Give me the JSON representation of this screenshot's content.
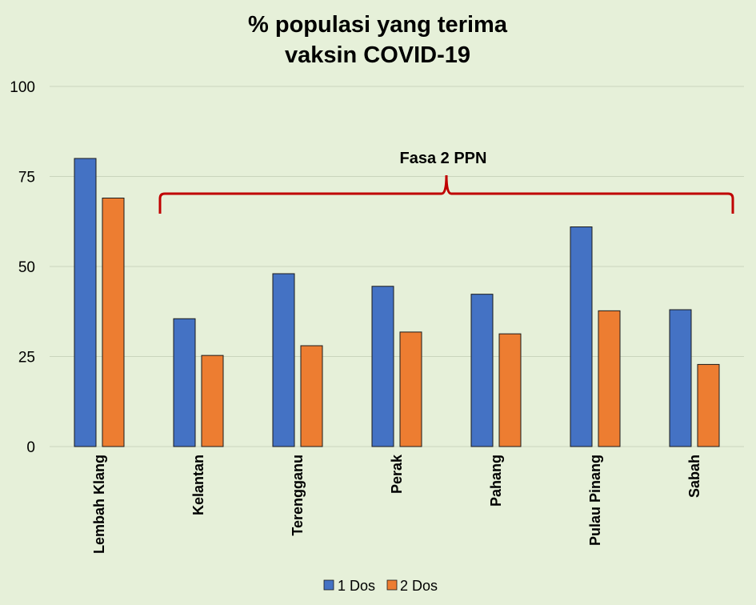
{
  "chart_data": {
    "type": "bar",
    "title_lines": [
      "% populasi yang terima",
      "vaksin COVID-19"
    ],
    "categories": [
      "Lembah Klang",
      "Kelantan",
      "Terengganu",
      "Perak",
      "Pahang",
      "Pulau Pinang",
      "Sabah"
    ],
    "series": [
      {
        "name": "1 Dos",
        "color": "#4472c4",
        "values": [
          80,
          35.5,
          48,
          44.5,
          42.3,
          61,
          38
        ]
      },
      {
        "name": "2 Dos",
        "color": "#ed7d31",
        "values": [
          69,
          25.3,
          28,
          31.8,
          31.3,
          37.7,
          22.8
        ]
      }
    ],
    "yticks": [
      "0",
      "25",
      "50",
      "75",
      "100"
    ],
    "ylim": [
      0,
      100
    ],
    "grid": true,
    "legend_position": "bottom",
    "annotation": {
      "text": "Fasa 2 PPN",
      "from_category": "Kelantan",
      "to_category": "Sabah",
      "color": "#c00000"
    }
  }
}
